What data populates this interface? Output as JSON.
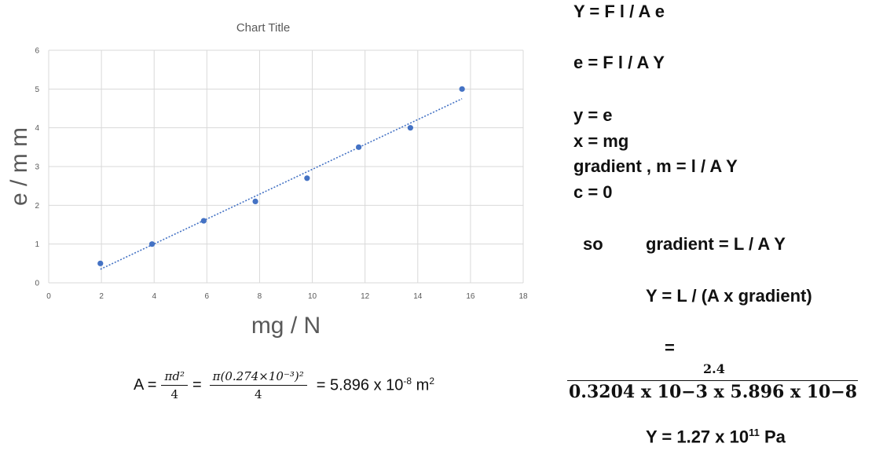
{
  "chart_data": {
    "type": "scatter",
    "title": "Chart Title",
    "xlabel": "mg / N",
    "ylabel": "e / m m",
    "xlim": [
      0,
      18
    ],
    "ylim": [
      0,
      6
    ],
    "x_ticks": [
      "0",
      "2",
      "4",
      "6",
      "8",
      "10",
      "12",
      "14",
      "16",
      "18"
    ],
    "y_ticks": [
      "0",
      "1",
      "2",
      "3",
      "4",
      "5",
      "6"
    ],
    "grid": true,
    "trendline": "linear",
    "series": [
      {
        "x": [
          1.96,
          3.92,
          5.88,
          7.84,
          9.8,
          11.76,
          13.72,
          15.68
        ],
        "y": [
          0.5,
          1.0,
          1.6,
          2.1,
          2.7,
          3.5,
          4.0,
          5.0
        ]
      }
    ],
    "colors": {
      "point": "#4472c4",
      "trend": "#4472c4",
      "grid": "#d9d9d9"
    }
  },
  "notes": {
    "line1": "Y  = F l / A e",
    "line2": "e  =  F l / A Y",
    "line3": "y = e",
    "line4": "x = mg",
    "line5": "gradient ,  m  = l / A Y",
    "line6": "c = 0",
    "so": "so",
    "gradient_eq": "gradient  =  L / A Y",
    "y_eq": "Y  =  L  /  (A x gradient)",
    "equals": "=",
    "frac_num": "2.4",
    "frac_den": "0.3204 x 10−3 x   5.896 x 10−8",
    "result_prefix": "Y   = 1.27 x 10",
    "result_exp": "11",
    "result_suffix": " Pa"
  },
  "area_calc": {
    "lhs": "A =",
    "f1_num": "πd²",
    "f1_den": "4",
    "eq": "=",
    "f2_num": "π(0.274×10⁻³)²",
    "f2_den": "4",
    "result_prefix": "=  5.896 x 10",
    "result_exp": "-8",
    "result_unit": " m",
    "result_unit_exp": "2"
  }
}
